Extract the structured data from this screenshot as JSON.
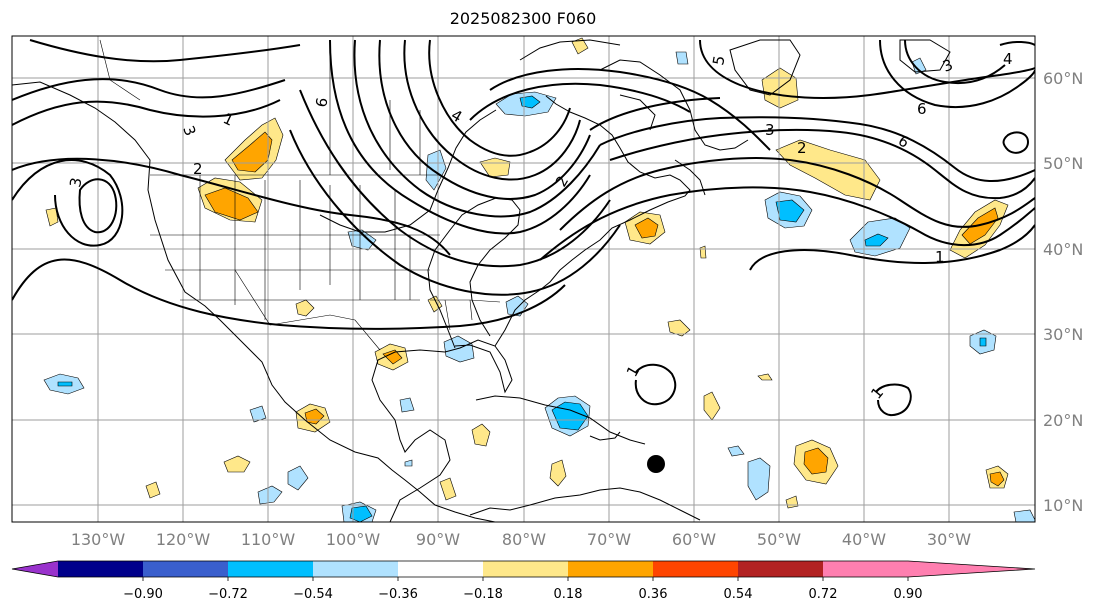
{
  "title": "2025082300 F060",
  "lon_labels": [
    "130°W",
    "120°W",
    "110°W",
    "100°W",
    "90°W",
    "80°W",
    "70°W",
    "60°W",
    "50°W",
    "40°W",
    "30°W"
  ],
  "lat_labels": [
    "60°N",
    "50°N",
    "40°N",
    "30°N",
    "20°N",
    "10°N"
  ],
  "contour_labels": [
    "1",
    "3",
    "2",
    "3",
    "6",
    "4",
    "3",
    "6",
    "2",
    "6",
    "5",
    "3",
    "4",
    "1",
    "1",
    "1",
    "2"
  ],
  "colorbar": {
    "ticks": [
      "−0.90",
      "−0.72",
      "−0.54",
      "−0.36",
      "−0.18",
      "0.18",
      "0.36",
      "0.54",
      "0.72",
      "0.90"
    ],
    "colors": [
      "#9932cc",
      "#00008b",
      "#3a5fcd",
      "#00bfff",
      "#b0e2ff",
      "#ffffff",
      "#ffe88a",
      "#ffa500",
      "#ff4500",
      "#b22222",
      "#ff7fb0"
    ]
  },
  "marker_color": "#000000"
}
